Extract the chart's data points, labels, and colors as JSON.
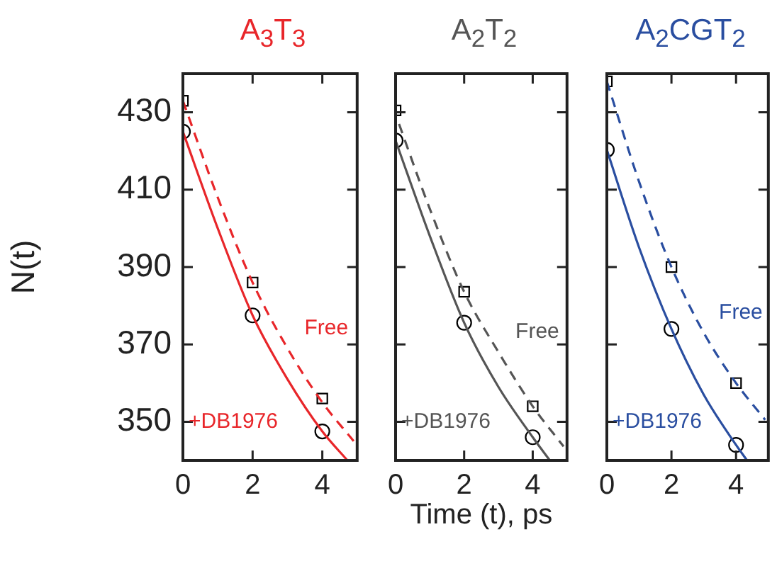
{
  "chart_data": [
    {
      "type": "line",
      "title": "A$_{3}$T$_{3}$",
      "ylabel": "N(t)",
      "xlim": [
        0,
        5
      ],
      "xticks": [
        0,
        2,
        4
      ],
      "ylim": [
        340,
        440
      ],
      "yticks": [
        350,
        370,
        390,
        410,
        430
      ],
      "grid": false,
      "legend": false,
      "series": [
        {
          "name": "Free",
          "type": "line",
          "color": "#e8262a",
          "line_style": "dashed",
          "marker": "none",
          "x": [
            0,
            1,
            2,
            3,
            4,
            4.9
          ],
          "values": [
            433,
            408,
            386,
            369,
            355,
            345
          ]
        },
        {
          "name": "+DB1976",
          "type": "line",
          "color": "#e8262a",
          "line_style": "solid",
          "marker": "none",
          "x": [
            0,
            1,
            2,
            3,
            4,
            4.72
          ],
          "values": [
            425,
            400,
            377.5,
            361,
            347.5,
            340
          ]
        },
        {
          "type": "scatter",
          "color": "#000000",
          "marker": "square",
          "x": [
            0,
            2,
            4
          ],
          "values": [
            433,
            386,
            356
          ]
        },
        {
          "type": "scatter",
          "color": "#000000",
          "marker": "circle",
          "x": [
            0,
            2,
            4
          ],
          "values": [
            425,
            377.5,
            347.5
          ]
        }
      ]
    },
    {
      "type": "line",
      "title": "A$_{2}$T$_{2}$",
      "xlabel": "Time (t), ps",
      "xlim": [
        0,
        5
      ],
      "xticks": [
        0,
        2,
        4
      ],
      "ylim": [
        340,
        440
      ],
      "yticks": [
        350,
        370,
        390,
        410,
        430
      ],
      "grid": false,
      "legend": false,
      "tick_labels": "x",
      "series": [
        {
          "name": "Free",
          "type": "line",
          "color": "#555555",
          "line_style": "dashed",
          "marker": "none",
          "x": [
            0.1,
            1,
            2,
            3,
            4,
            4.9
          ],
          "values": [
            427,
            405,
            383.6,
            368,
            354,
            343.6
          ]
        },
        {
          "name": "+DB1976",
          "type": "line",
          "color": "#555555",
          "line_style": "solid",
          "marker": "none",
          "x": [
            0,
            1,
            2,
            3,
            4,
            4.5
          ],
          "values": [
            422.7,
            398,
            375.6,
            359,
            346,
            340
          ]
        },
        {
          "type": "scatter",
          "color": "#000000",
          "marker": "square",
          "x": [
            0,
            2,
            4
          ],
          "values": [
            430.5,
            383.6,
            354
          ]
        },
        {
          "type": "scatter",
          "color": "#000000",
          "marker": "circle",
          "x": [
            0,
            2,
            4
          ],
          "values": [
            422.7,
            375.6,
            346
          ]
        }
      ]
    },
    {
      "type": "line",
      "title": "A$_{2}$CGT$_{2}$",
      "xlim": [
        0,
        5
      ],
      "xticks": [
        0,
        2,
        4
      ],
      "ylim": [
        340,
        440
      ],
      "yticks": [
        350,
        370,
        390,
        410,
        430
      ],
      "grid": false,
      "legend": false,
      "tick_labels": "x",
      "series": [
        {
          "name": "Free",
          "type": "line",
          "color": "#2a4ea0",
          "line_style": "dashed",
          "marker": "none",
          "x": [
            0,
            1,
            2,
            3,
            4,
            4.9
          ],
          "values": [
            438,
            412,
            390,
            373,
            360,
            350.5
          ]
        },
        {
          "name": "+DB1976",
          "type": "line",
          "color": "#2a4ea0",
          "line_style": "solid",
          "marker": "none",
          "x": [
            0,
            1,
            2,
            3,
            4,
            4.34
          ],
          "values": [
            420.3,
            395,
            374,
            357,
            344,
            340
          ]
        },
        {
          "type": "scatter",
          "color": "#000000",
          "marker": "square",
          "x": [
            0,
            2,
            4
          ],
          "values": [
            438,
            390,
            360
          ]
        },
        {
          "type": "scatter",
          "color": "#000000",
          "marker": "circle",
          "x": [
            0,
            2,
            4
          ],
          "values": [
            420.3,
            374,
            344
          ]
        }
      ]
    }
  ]
}
